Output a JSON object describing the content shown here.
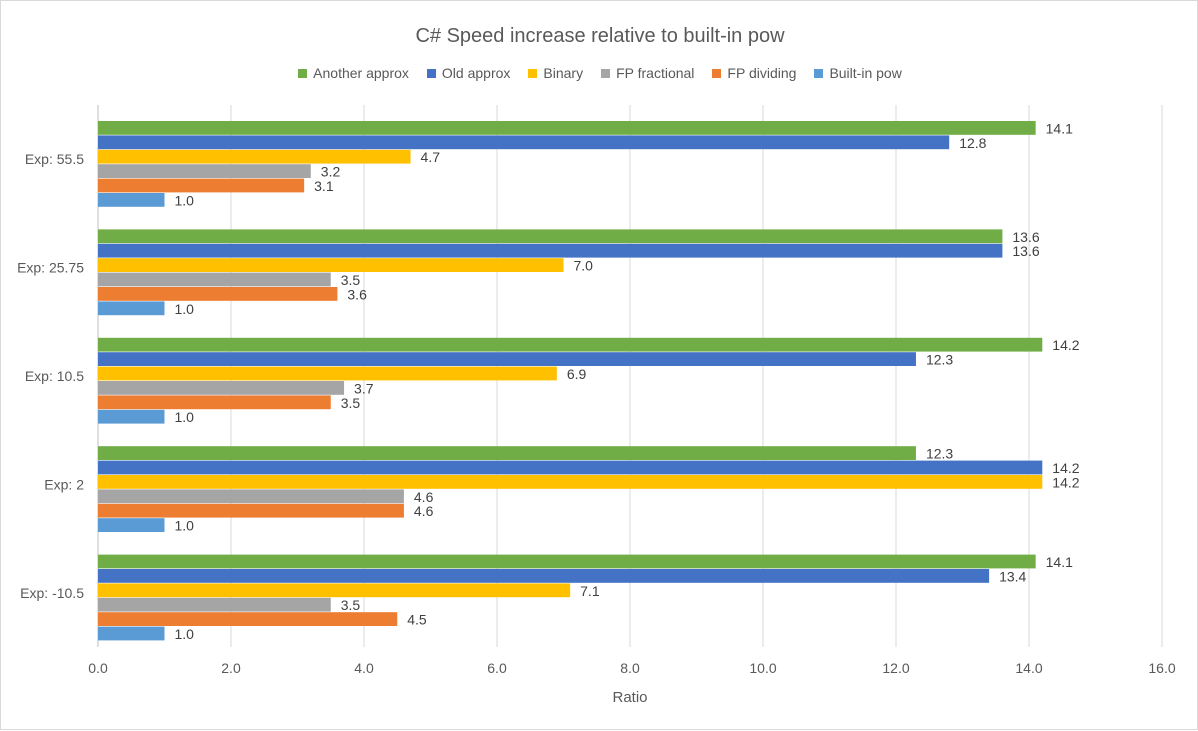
{
  "chart_data": {
    "type": "bar",
    "orientation": "horizontal",
    "title": "C# Speed increase relative to built-in pow",
    "xlabel": "Ratio",
    "ylabel": "",
    "xlim": [
      0,
      16
    ],
    "xticks": [
      "0.0",
      "2.0",
      "4.0",
      "6.0",
      "8.0",
      "10.0",
      "12.0",
      "14.0",
      "16.0"
    ],
    "grid": "vertical",
    "legend": "top",
    "categories": [
      "Exp: 55.5",
      "Exp: 25.75",
      "Exp: 10.5",
      "Exp: 2",
      "Exp: -10.5"
    ],
    "series": [
      {
        "name": "Another approx",
        "color": "#70AD47",
        "values": [
          14.1,
          13.6,
          14.2,
          12.3,
          14.1
        ]
      },
      {
        "name": "Old approx",
        "color": "#4472C4",
        "values": [
          12.8,
          13.6,
          12.3,
          14.2,
          13.4
        ]
      },
      {
        "name": "Binary",
        "color": "#FFC000",
        "values": [
          4.7,
          7.0,
          6.9,
          14.2,
          7.1
        ]
      },
      {
        "name": "FP fractional",
        "color": "#A5A5A5",
        "values": [
          3.2,
          3.5,
          3.7,
          4.6,
          3.5
        ]
      },
      {
        "name": "FP dividing",
        "color": "#ED7D31",
        "values": [
          3.1,
          3.6,
          3.5,
          4.6,
          4.5
        ]
      },
      {
        "name": "Built-in pow",
        "color": "#5B9BD5",
        "values": [
          1.0,
          1.0,
          1.0,
          1.0,
          1.0
        ]
      }
    ]
  }
}
